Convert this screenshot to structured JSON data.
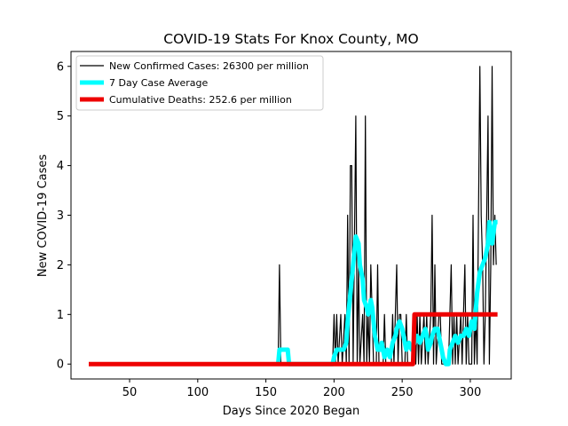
{
  "chart_data": {
    "type": "line",
    "title": "COVID-19 Stats For Knox County, MO",
    "xlabel": "Days Since 2020 Began",
    "ylabel": "New COVID-19 Cases",
    "xlim": [
      7,
      330
    ],
    "ylim": [
      -0.3,
      6.3
    ],
    "xticks": [
      50,
      100,
      150,
      200,
      250,
      300
    ],
    "yticks": [
      0,
      1,
      2,
      3,
      4,
      5,
      6
    ],
    "grid": false,
    "legend_position": "top-left",
    "series": [
      {
        "name": "New Confirmed Cases: 26300 per million",
        "color": "#000000",
        "points": [
          [
            20,
            0
          ],
          [
            159,
            0
          ],
          [
            160,
            2
          ],
          [
            161,
            0
          ],
          [
            199,
            0
          ],
          [
            200,
            1
          ],
          [
            201,
            0
          ],
          [
            202,
            1
          ],
          [
            203,
            0
          ],
          [
            205,
            1
          ],
          [
            206,
            0
          ],
          [
            208,
            1
          ],
          [
            209,
            0
          ],
          [
            210,
            3
          ],
          [
            211,
            0
          ],
          [
            212,
            4
          ],
          [
            213,
            4
          ],
          [
            214,
            0
          ],
          [
            216,
            5
          ],
          [
            217,
            0
          ],
          [
            218,
            2
          ],
          [
            219,
            0
          ],
          [
            221,
            1
          ],
          [
            222,
            0
          ],
          [
            223,
            5
          ],
          [
            224,
            0
          ],
          [
            225,
            1
          ],
          [
            226,
            0
          ],
          [
            227,
            2
          ],
          [
            228,
            1
          ],
          [
            229,
            0
          ],
          [
            231,
            0
          ],
          [
            232,
            2
          ],
          [
            233,
            0
          ],
          [
            236,
            0
          ],
          [
            237,
            1
          ],
          [
            238,
            0
          ],
          [
            242,
            0
          ],
          [
            243,
            1
          ],
          [
            244,
            0
          ],
          [
            246,
            2
          ],
          [
            247,
            0
          ],
          [
            248,
            1
          ],
          [
            249,
            1
          ],
          [
            250,
            0
          ],
          [
            252,
            0
          ],
          [
            253,
            1
          ],
          [
            254,
            0
          ],
          [
            258,
            0
          ],
          [
            259,
            1
          ],
          [
            260,
            0
          ],
          [
            261,
            1
          ],
          [
            262,
            0
          ],
          [
            263,
            1
          ],
          [
            264,
            0
          ],
          [
            266,
            1
          ],
          [
            267,
            0
          ],
          [
            268,
            1
          ],
          [
            269,
            0
          ],
          [
            271,
            1
          ],
          [
            272,
            3
          ],
          [
            273,
            0
          ],
          [
            274,
            2
          ],
          [
            275,
            0
          ],
          [
            277,
            1
          ],
          [
            278,
            1
          ],
          [
            279,
            0
          ],
          [
            283,
            0
          ],
          [
            284,
            0
          ],
          [
            286,
            2
          ],
          [
            287,
            0
          ],
          [
            288,
            1
          ],
          [
            289,
            0
          ],
          [
            290,
            1
          ],
          [
            291,
            0
          ],
          [
            293,
            1
          ],
          [
            294,
            0
          ],
          [
            296,
            2
          ],
          [
            297,
            0
          ],
          [
            298,
            1
          ],
          [
            299,
            0
          ],
          [
            301,
            0
          ],
          [
            302,
            3
          ],
          [
            303,
            0
          ],
          [
            304,
            1
          ],
          [
            305,
            0
          ],
          [
            307,
            6
          ],
          [
            308,
            3
          ],
          [
            309,
            2
          ],
          [
            310,
            0
          ],
          [
            311,
            1
          ],
          [
            312,
            3
          ],
          [
            313,
            5
          ],
          [
            314,
            0
          ],
          [
            315,
            2
          ],
          [
            316,
            6
          ],
          [
            317,
            2
          ],
          [
            318,
            3
          ],
          [
            319,
            2
          ]
        ]
      },
      {
        "name": "7 Day Case Average",
        "color": "#00ffff",
        "points": [
          [
            159,
            0
          ],
          [
            160,
            0.29
          ],
          [
            166,
            0.29
          ],
          [
            167,
            0
          ],
          [
            199,
            0
          ],
          [
            200,
            0.14
          ],
          [
            202,
            0.29
          ],
          [
            207,
            0.29
          ],
          [
            209,
            0.43
          ],
          [
            210,
            0.86
          ],
          [
            212,
            1.43
          ],
          [
            214,
            2.0
          ],
          [
            216,
            2.57
          ],
          [
            218,
            2.43
          ],
          [
            219,
            2.0
          ],
          [
            221,
            1.71
          ],
          [
            222,
            1.29
          ],
          [
            224,
            1.14
          ],
          [
            225,
            1.0
          ],
          [
            227,
            1.29
          ],
          [
            228,
            1.14
          ],
          [
            229,
            0.86
          ],
          [
            230,
            0.57
          ],
          [
            231,
            0.43
          ],
          [
            232,
            0.29
          ],
          [
            234,
            0.29
          ],
          [
            235,
            0.43
          ],
          [
            237,
            0.14
          ],
          [
            239,
            0.29
          ],
          [
            241,
            0.14
          ],
          [
            243,
            0.43
          ],
          [
            245,
            0.57
          ],
          [
            246,
            0.71
          ],
          [
            248,
            0.86
          ],
          [
            250,
            0.71
          ],
          [
            252,
            0.43
          ],
          [
            253,
            0.29
          ],
          [
            255,
            0.43
          ],
          [
            257,
            0.29
          ],
          [
            259,
            0.43
          ],
          [
            261,
            0.57
          ],
          [
            263,
            0.43
          ],
          [
            265,
            0.57
          ],
          [
            267,
            0.71
          ],
          [
            268,
            0.57
          ],
          [
            269,
            0.29
          ],
          [
            271,
            0.43
          ],
          [
            272,
            0.57
          ],
          [
            274,
            0.71
          ],
          [
            276,
            0.71
          ],
          [
            277,
            0.57
          ],
          [
            278,
            0.43
          ],
          [
            279,
            0.29
          ],
          [
            280,
            0.14
          ],
          [
            282,
            0
          ],
          [
            284,
            0
          ],
          [
            285,
            0.29
          ],
          [
            287,
            0.43
          ],
          [
            289,
            0.57
          ],
          [
            291,
            0.43
          ],
          [
            293,
            0.57
          ],
          [
            295,
            0.57
          ],
          [
            297,
            0.71
          ],
          [
            299,
            0.57
          ],
          [
            301,
            0.86
          ],
          [
            303,
            0.71
          ],
          [
            305,
            1.43
          ],
          [
            307,
            1.86
          ],
          [
            309,
            2.0
          ],
          [
            311,
            2.14
          ],
          [
            313,
            2.43
          ],
          [
            314,
            2.86
          ],
          [
            316,
            2.43
          ],
          [
            318,
            2.86
          ],
          [
            320,
            2.86
          ]
        ]
      },
      {
        "name": "Cumulative Deaths: 252.6 per million",
        "color": "#ee0000",
        "points": [
          [
            20,
            0
          ],
          [
            258,
            0
          ],
          [
            259,
            1
          ],
          [
            320,
            1
          ]
        ]
      }
    ]
  }
}
